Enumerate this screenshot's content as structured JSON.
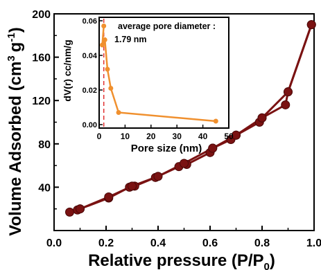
{
  "chart_data": [
    {
      "type": "line",
      "xlabel": "Relative pressure (P/P",
      "xlabel_sub": "0",
      "xlabel_close": ")",
      "ylabel_main": "Volume Adsorbed (cm",
      "ylabel_sup1": "3",
      "ylabel_mid": "g",
      "ylabel_sup2": "-1",
      "ylabel_close": ")",
      "xlim": [
        0.0,
        1.0
      ],
      "ylim": [
        0,
        200
      ],
      "xticks": [
        "0.0",
        "0.2",
        "0.4",
        "0.6",
        "0.8",
        "1.0"
      ],
      "yticks": [
        "40",
        "80",
        "120",
        "160",
        "200"
      ],
      "grid": false,
      "color": "#7a1212",
      "series": [
        {
          "x": [
            0.06,
            0.09,
            0.1,
            0.21,
            0.29,
            0.31,
            0.39,
            0.48,
            0.51,
            0.6,
            0.61,
            0.68,
            0.7,
            0.79,
            0.8,
            0.89,
            0.9,
            0.99
          ],
          "y": [
            17,
            19,
            20,
            30,
            40,
            41,
            49,
            59,
            61,
            72,
            76,
            84,
            88,
            100,
            104,
            116,
            128,
            190
          ]
        },
        {
          "x": [
            0.99,
            0.9,
            0.8,
            0.7,
            0.61,
            0.5,
            0.4,
            0.3,
            0.21,
            0.1
          ],
          "y": [
            190,
            128,
            104,
            88,
            76,
            62,
            50,
            41,
            31,
            20
          ]
        }
      ]
    },
    {
      "type": "line",
      "xlabel": "Pore size (nm)",
      "ylabel": "dV(r) cc/nm/g",
      "annotation_line1": "average pore diameter :",
      "annotation_line2": "1.79 nm",
      "marker_x": 1.79,
      "xlim": [
        0,
        50
      ],
      "ylim": [
        -0.002,
        0.062
      ],
      "xticks": [
        "0",
        "10",
        "20",
        "30",
        "40",
        "50"
      ],
      "yticks": [
        "0.00",
        "0.02",
        "0.04",
        "0.06"
      ],
      "color": "#f0902e",
      "marker_color": "#e03030",
      "x": [
        1.79,
        1.2,
        2.2,
        3.2,
        4.5,
        7.5,
        45
      ],
      "y": [
        0.057,
        0.046,
        0.049,
        0.032,
        0.021,
        0.007,
        0.002
      ]
    }
  ]
}
